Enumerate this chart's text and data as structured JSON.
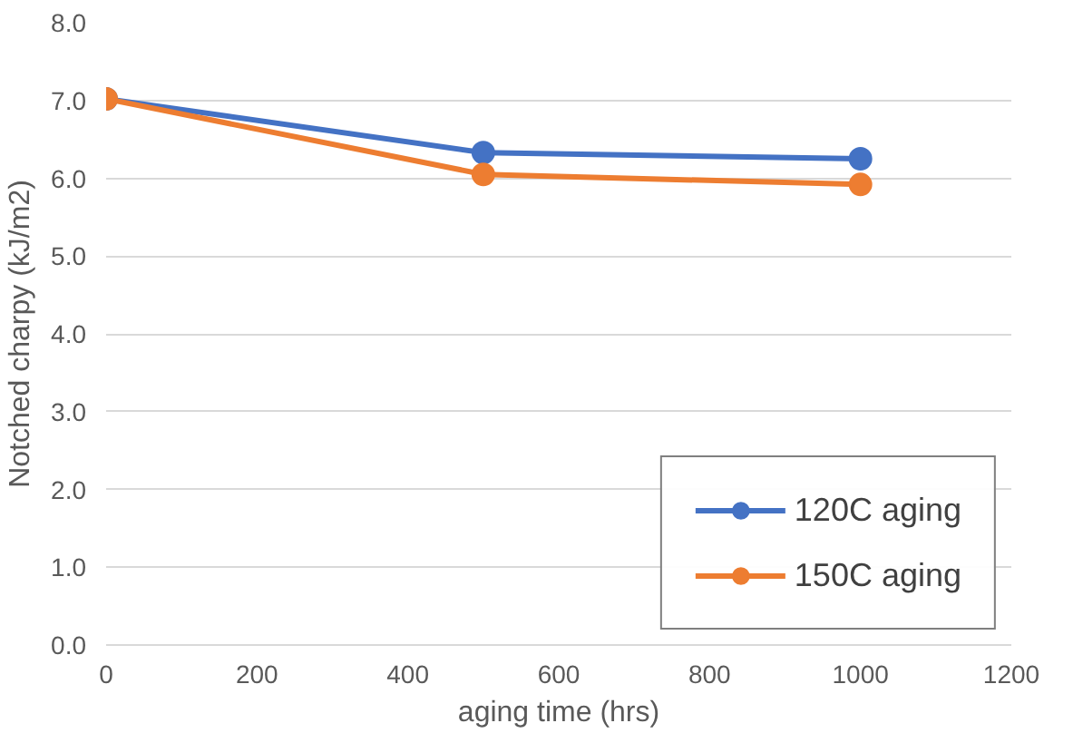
{
  "chart_data": {
    "type": "line",
    "xlabel": "aging time (hrs)",
    "ylabel": "Notched charpy (kJ/m2)",
    "x": [
      0,
      500,
      1000
    ],
    "series": [
      {
        "name": "120C aging",
        "color": "#4472c4",
        "values": [
          7.02,
          6.33,
          6.25
        ]
      },
      {
        "name": "150C aging",
        "color": "#ed7d31",
        "values": [
          7.02,
          6.05,
          5.92
        ]
      }
    ],
    "xlim": [
      0,
      1200
    ],
    "xticks": [
      0,
      200,
      400,
      600,
      800,
      1000,
      1200
    ],
    "ylim": [
      0,
      8
    ],
    "yticks": [
      {
        "value": 0,
        "label": "0.0"
      },
      {
        "value": 1,
        "label": "1.0"
      },
      {
        "value": 2,
        "label": "2.0"
      },
      {
        "value": 3,
        "label": "3.0"
      },
      {
        "value": 4,
        "label": "4.0"
      },
      {
        "value": 5,
        "label": "5.0"
      },
      {
        "value": 6,
        "label": "6.0"
      },
      {
        "value": 7,
        "label": "7.0"
      },
      {
        "value": 8,
        "label": "8.0"
      }
    ],
    "grid": "y",
    "legend": "bottom right",
    "marker": "circle",
    "line_style": "solid"
  }
}
